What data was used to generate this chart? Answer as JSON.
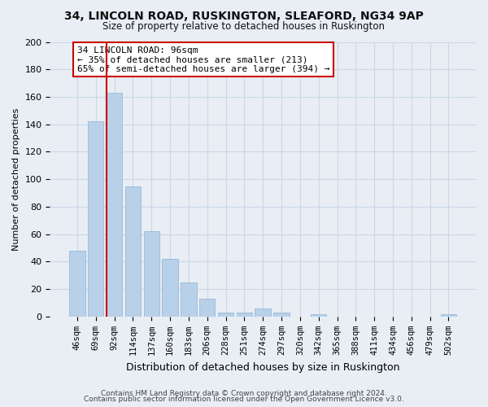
{
  "title1": "34, LINCOLN ROAD, RUSKINGTON, SLEAFORD, NG34 9AP",
  "title2": "Size of property relative to detached houses in Ruskington",
  "xlabel": "Distribution of detached houses by size in Ruskington",
  "ylabel": "Number of detached properties",
  "bar_labels": [
    "46sqm",
    "69sqm",
    "92sqm",
    "114sqm",
    "137sqm",
    "160sqm",
    "183sqm",
    "206sqm",
    "228sqm",
    "251sqm",
    "274sqm",
    "297sqm",
    "320sqm",
    "342sqm",
    "365sqm",
    "388sqm",
    "411sqm",
    "434sqm",
    "456sqm",
    "479sqm",
    "502sqm"
  ],
  "bar_values": [
    48,
    142,
    163,
    95,
    62,
    42,
    25,
    13,
    3,
    3,
    6,
    3,
    0,
    2,
    0,
    0,
    0,
    0,
    0,
    0,
    2
  ],
  "bar_color": "#b8d0e8",
  "bar_edge_color": "#9ab8d8",
  "vline_color": "#cc0000",
  "vline_bar_index": 2,
  "annotation_title": "34 LINCOLN ROAD: 96sqm",
  "annotation_line1": "← 35% of detached houses are smaller (213)",
  "annotation_line2": "65% of semi-detached houses are larger (394) →",
  "annotation_box_color": "#ffffff",
  "annotation_box_edge": "#cc0000",
  "ylim": [
    0,
    200
  ],
  "yticks": [
    0,
    20,
    40,
    60,
    80,
    100,
    120,
    140,
    160,
    180,
    200
  ],
  "footer1": "Contains HM Land Registry data © Crown copyright and database right 2024.",
  "footer2": "Contains public sector information licensed under the Open Government Licence v3.0.",
  "bg_color": "#e8eef4",
  "plot_bg_color": "#e8eef4",
  "grid_color": "#c8d8e8"
}
